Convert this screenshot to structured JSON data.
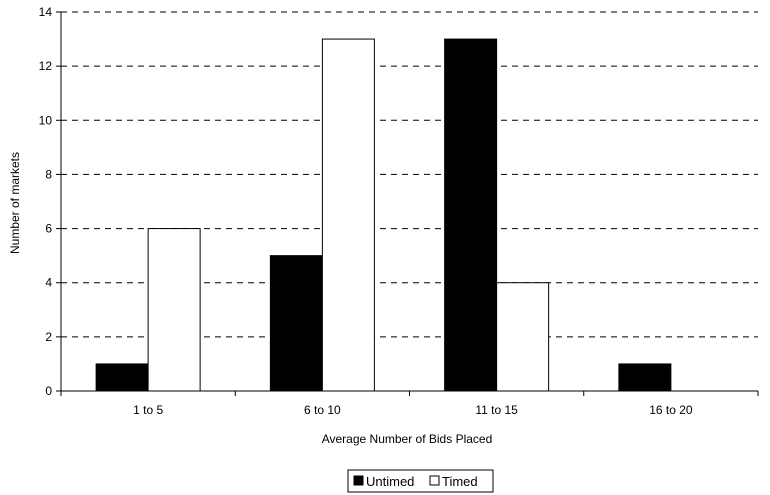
{
  "chart_data": {
    "type": "bar",
    "categories": [
      "1 to 5",
      "6 to 10",
      "11 to 15",
      "16 to 20"
    ],
    "series": [
      {
        "name": "Untimed",
        "color": "#000000",
        "values": [
          1,
          5,
          13,
          1
        ]
      },
      {
        "name": "Timed",
        "color": "#ffffff",
        "values": [
          6,
          13,
          4,
          0
        ]
      }
    ],
    "xlabel": "Average Number of Bids Placed",
    "ylabel": "Number of markets",
    "ylim": [
      0,
      14
    ],
    "yticks": [
      0,
      2,
      4,
      6,
      8,
      10,
      12,
      14
    ],
    "grid": "horizontal dashed",
    "legend_position": "bottom-center"
  }
}
